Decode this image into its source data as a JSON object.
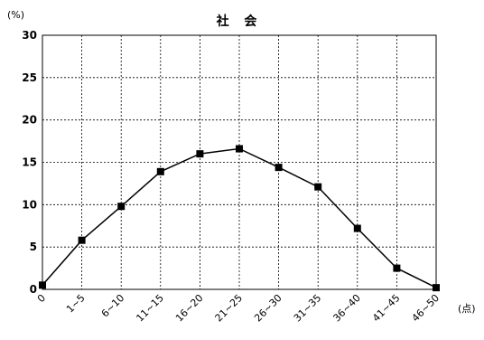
{
  "chart_data": {
    "type": "line",
    "title": "社 会",
    "y_unit_label": "(%)",
    "x_unit_label": "(点)",
    "categories": [
      "0",
      "1~5",
      "6~10",
      "11~15",
      "16~20",
      "21~25",
      "26~30",
      "31~35",
      "36~40",
      "41~45",
      "46~50"
    ],
    "values": [
      0.5,
      5.8,
      9.8,
      13.9,
      16.0,
      16.6,
      14.4,
      12.1,
      7.2,
      2.5,
      0.2
    ],
    "ylim": [
      0,
      30
    ],
    "yticks": [
      0,
      5,
      10,
      15,
      20,
      25,
      30
    ],
    "grid": true,
    "marker": "square",
    "line_color": "#000000"
  }
}
